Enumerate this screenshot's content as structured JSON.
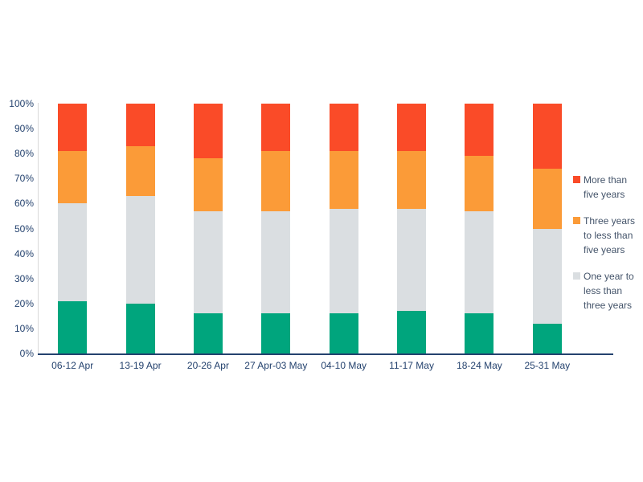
{
  "chart_data": {
    "type": "bar",
    "subtype": "stacked-100-percent-vertical",
    "title": "",
    "xlabel": "",
    "ylabel": "",
    "ylim": [
      0,
      100
    ],
    "grid": false,
    "legend_position": "right",
    "categories": [
      "06-12 Apr",
      "13-19 Apr",
      "20-26 Apr",
      "27 Apr-03 May",
      "04-10 May",
      "11-17 May",
      "18-24 May",
      "25-31 May"
    ],
    "yticks": [
      "0%",
      "10%",
      "20%",
      "30%",
      "40%",
      "50%",
      "60%",
      "70%",
      "80%",
      "90%",
      "100%"
    ],
    "series": [
      {
        "name": "",
        "color": "#00a57d",
        "values": [
          21,
          20,
          16,
          16,
          16,
          17,
          16,
          12
        ]
      },
      {
        "name": "One year to less than three years",
        "color": "#dadee1",
        "values": [
          39,
          43,
          41,
          41,
          42,
          41,
          41,
          38
        ]
      },
      {
        "name": "Three years to less than five years",
        "color": "#fb9b38",
        "values": [
          21,
          20,
          21,
          24,
          23,
          23,
          22,
          24
        ]
      },
      {
        "name": "More than five years",
        "color": "#fa4b28",
        "values": [
          19,
          17,
          22,
          19,
          19,
          19,
          21,
          26
        ]
      }
    ],
    "legend": {
      "entries": [
        {
          "label": "More than five years",
          "color": "#fa4b28"
        },
        {
          "label": "Three years to less than five years",
          "color": "#fb9b38"
        },
        {
          "label": "One year to less than three years",
          "color": "#dadee1"
        }
      ]
    },
    "colors": {
      "axis_line": "#24426e",
      "axis_label_text": "#24426e",
      "legend_text": "#44546a",
      "y_axis_rule": "#d9d9d9",
      "background": "#ffffff"
    }
  }
}
